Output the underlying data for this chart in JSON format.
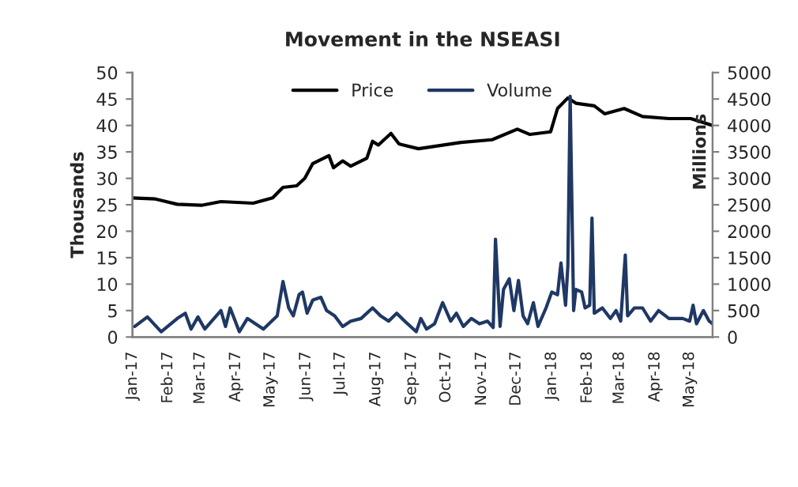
{
  "chart_data": {
    "type": "line",
    "title": "Movement in the NSEASI",
    "ylabel": "Thousands",
    "y2label": "Millions",
    "series": [
      {
        "name": "Price",
        "color": "#000000",
        "x": [
          "2017-01-01",
          "2017-01-21",
          "2017-02-09",
          "2017-03-02",
          "2017-03-19",
          "2017-04-16",
          "2017-05-03",
          "2017-05-12",
          "2017-05-24",
          "2017-05-31",
          "2017-06-07",
          "2017-06-21",
          "2017-06-25",
          "2017-07-03",
          "2017-07-10",
          "2017-07-24",
          "2017-07-29",
          "2017-08-03",
          "2017-08-14",
          "2017-08-21",
          "2017-09-07",
          "2017-09-29",
          "2017-10-14",
          "2017-11-10",
          "2017-12-02",
          "2017-12-13",
          "2017-12-31",
          "2018-01-06",
          "2018-01-15",
          "2018-01-22",
          "2018-02-07",
          "2018-02-16",
          "2018-03-05",
          "2018-03-21",
          "2018-04-13",
          "2018-05-02",
          "2018-05-21"
        ],
        "values": [
          26.3,
          26.1,
          25.1,
          24.9,
          25.6,
          25.3,
          26.3,
          28.3,
          28.6,
          30.0,
          32.8,
          34.3,
          32.0,
          33.3,
          32.3,
          33.8,
          37.0,
          36.3,
          38.5,
          36.5,
          35.6,
          36.3,
          36.8,
          37.3,
          39.3,
          38.3,
          38.8,
          43.2,
          45.2,
          44.2,
          43.7,
          42.2,
          43.2,
          41.7,
          41.3,
          41.3,
          40.0
        ]
      },
      {
        "name": "Volume",
        "color": "#1f3864",
        "axis": "y2",
        "x": [
          "2017-01-03",
          "2017-01-14",
          "2017-01-26",
          "2017-02-09",
          "2017-02-16",
          "2017-02-21",
          "2017-02-27",
          "2017-03-05",
          "2017-03-19",
          "2017-03-23",
          "2017-03-27",
          "2017-04-04",
          "2017-04-11",
          "2017-04-25",
          "2017-05-07",
          "2017-05-12",
          "2017-05-17",
          "2017-05-21",
          "2017-05-26",
          "2017-05-29",
          "2017-06-02",
          "2017-06-07",
          "2017-06-14",
          "2017-06-19",
          "2017-06-26",
          "2017-07-03",
          "2017-07-10",
          "2017-07-19",
          "2017-07-29",
          "2017-08-05",
          "2017-08-12",
          "2017-08-19",
          "2017-08-26",
          "2017-09-05",
          "2017-09-09",
          "2017-09-14",
          "2017-09-21",
          "2017-09-28",
          "2017-10-05",
          "2017-10-10",
          "2017-10-16",
          "2017-10-23",
          "2017-10-30",
          "2017-11-06",
          "2017-11-11",
          "2017-11-13",
          "2017-11-17",
          "2017-11-20",
          "2017-11-25",
          "2017-11-29",
          "2017-12-03",
          "2017-12-07",
          "2017-12-11",
          "2017-12-16",
          "2017-12-20",
          "2017-12-27",
          "2018-01-01",
          "2018-01-06",
          "2018-01-09",
          "2018-01-13",
          "2018-01-15",
          "2018-01-17",
          "2018-01-20",
          "2018-01-22",
          "2018-01-27",
          "2018-01-30",
          "2018-02-03",
          "2018-02-05",
          "2018-02-07",
          "2018-02-14",
          "2018-02-21",
          "2018-02-26",
          "2018-03-02",
          "2018-03-06",
          "2018-03-08",
          "2018-03-14",
          "2018-03-21",
          "2018-03-28",
          "2018-04-04",
          "2018-04-13",
          "2018-04-25",
          "2018-05-01",
          "2018-05-04",
          "2018-05-07",
          "2018-05-13",
          "2018-05-18",
          "2018-05-21"
        ],
        "values": [
          200,
          380,
          100,
          350,
          450,
          150,
          380,
          150,
          500,
          200,
          550,
          100,
          350,
          150,
          400,
          1050,
          550,
          400,
          800,
          850,
          450,
          700,
          750,
          500,
          400,
          200,
          300,
          350,
          550,
          400,
          300,
          450,
          300,
          100,
          350,
          150,
          250,
          650,
          300,
          450,
          200,
          350,
          250,
          300,
          180,
          1850,
          200,
          900,
          1100,
          500,
          1070,
          400,
          250,
          650,
          200,
          550,
          850,
          800,
          1400,
          600,
          1350,
          4550,
          500,
          900,
          850,
          550,
          600,
          2250,
          450,
          550,
          350,
          500,
          300,
          1550,
          400,
          550,
          550,
          300,
          500,
          350,
          350,
          300,
          600,
          250,
          500,
          300,
          250
        ]
      }
    ],
    "xlim": [
      "2017-01-01",
      "2018-05-21"
    ],
    "xticks": [
      {
        "value": "2017-01-01",
        "label": "Jan-17"
      },
      {
        "value": "2017-02-01",
        "label": "Feb-17"
      },
      {
        "value": "2017-03-01",
        "label": "Mar-17"
      },
      {
        "value": "2017-04-01",
        "label": "Apr-17"
      },
      {
        "value": "2017-05-01",
        "label": "May-17"
      },
      {
        "value": "2017-06-01",
        "label": "Jun-17"
      },
      {
        "value": "2017-07-01",
        "label": "Jul-17"
      },
      {
        "value": "2017-08-01",
        "label": "Aug-17"
      },
      {
        "value": "2017-09-01",
        "label": "Sep-17"
      },
      {
        "value": "2017-10-01",
        "label": "Oct-17"
      },
      {
        "value": "2017-11-01",
        "label": "Nov-17"
      },
      {
        "value": "2017-12-01",
        "label": "Dec-17"
      },
      {
        "value": "2018-01-01",
        "label": "Jan-18"
      },
      {
        "value": "2018-02-01",
        "label": "Feb-18"
      },
      {
        "value": "2018-03-01",
        "label": "Mar-18"
      },
      {
        "value": "2018-04-01",
        "label": "Apr-18"
      },
      {
        "value": "2018-05-01",
        "label": "May-18"
      }
    ],
    "ylim": [
      0,
      50
    ],
    "yticks": [
      0,
      5,
      10,
      15,
      20,
      25,
      30,
      35,
      40,
      45,
      50
    ],
    "y2lim": [
      0,
      5000
    ],
    "y2ticks": [
      0,
      500,
      1000,
      1500,
      2000,
      2500,
      3000,
      3500,
      4000,
      4500,
      5000
    ],
    "grid": false,
    "legend": "top",
    "marker": "none",
    "line_style": "solid"
  }
}
